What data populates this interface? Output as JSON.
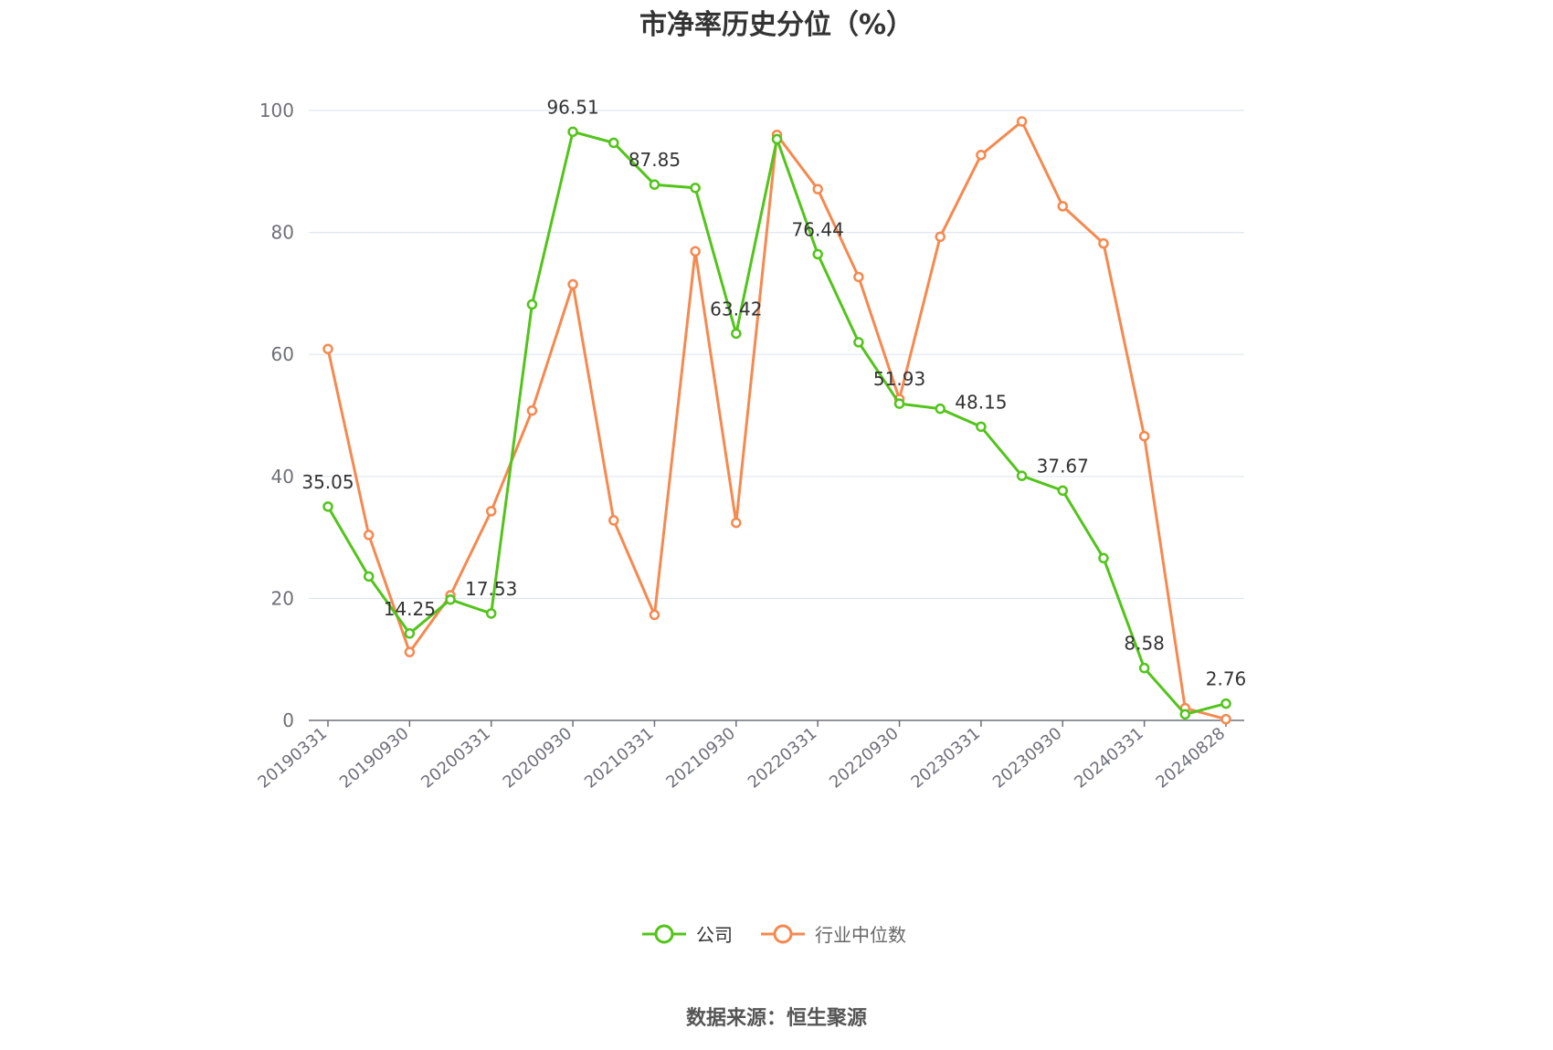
{
  "chart_data": {
    "type": "line",
    "title": "市净率历史分位（%）",
    "source": "数据来源：恒生聚源",
    "ylim": [
      0,
      100
    ],
    "yticks": [
      0,
      20,
      40,
      60,
      80,
      100
    ],
    "x_tick_labels": [
      "20190331",
      "20190930",
      "20200331",
      "20200930",
      "20210331",
      "20210930",
      "20220331",
      "20220930",
      "20230331",
      "20230930",
      "20240331",
      "20240828"
    ],
    "x": [
      "20190331",
      "20190630",
      "20190930",
      "20191231",
      "20200331",
      "20200630",
      "20200930",
      "20201231",
      "20210331",
      "20210630",
      "20210930",
      "20211231",
      "20220331",
      "20220630",
      "20220930",
      "20221231",
      "20230331",
      "20230630",
      "20230930",
      "20231231",
      "20240331",
      "20240630",
      "20240828"
    ],
    "series": [
      {
        "name": "公司",
        "color": "#52c41a",
        "values": [
          35.05,
          23.6,
          14.25,
          19.8,
          17.53,
          68.2,
          96.51,
          94.7,
          87.85,
          87.3,
          63.42,
          95.3,
          76.44,
          62.0,
          51.93,
          51.1,
          48.15,
          40.1,
          37.67,
          26.6,
          8.58,
          1.0,
          2.76
        ],
        "labels": {
          "0": "35.05",
          "2": "14.25",
          "4": "17.53",
          "6": "96.51",
          "8": "87.85",
          "10": "63.42",
          "12": "76.44",
          "14": "51.93",
          "16": "48.15",
          "18": "37.67",
          "20": "8.58",
          "22": "2.76"
        }
      },
      {
        "name": "行业中位数",
        "color": "#f5894f",
        "values": [
          60.9,
          30.4,
          11.2,
          20.5,
          34.3,
          50.8,
          71.5,
          32.8,
          17.3,
          76.9,
          32.4,
          96.0,
          87.1,
          72.7,
          52.7,
          79.3,
          92.7,
          98.2,
          84.3,
          78.2,
          46.6,
          2.0,
          0.2
        ]
      }
    ],
    "legend": "bottom-center",
    "grid": true
  }
}
